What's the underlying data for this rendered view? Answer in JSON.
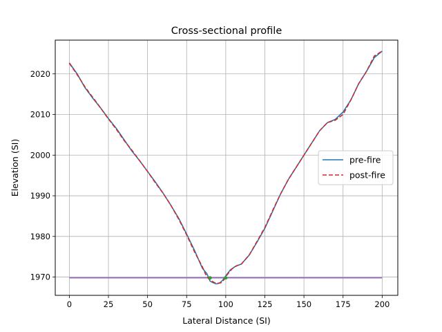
{
  "chart_data": {
    "type": "line",
    "title": "Cross-sectional profile",
    "xlabel": "Lateral Distance (SI)",
    "ylabel": "Elevation (SI)",
    "xlim": [
      -9,
      210
    ],
    "ylim": [
      1965.5,
      2028.3
    ],
    "xticks": [
      0,
      25,
      50,
      75,
      100,
      125,
      150,
      175,
      200
    ],
    "yticks": [
      1970,
      1980,
      1990,
      2000,
      2010,
      2020
    ],
    "grid": true,
    "legend_position": "right",
    "series": [
      {
        "name": "pre-fire",
        "color": "#1f77b4",
        "style": "solid",
        "x": [
          0,
          5,
          10,
          15,
          20,
          25,
          30,
          35,
          40,
          45,
          50,
          55,
          60,
          65,
          70,
          75,
          80,
          85,
          88,
          90,
          92,
          94,
          96,
          98,
          100,
          103,
          106,
          110,
          115,
          120,
          125,
          130,
          135,
          140,
          145,
          150,
          155,
          160,
          165,
          170,
          175,
          180,
          185,
          190,
          195,
          200
        ],
        "y": [
          2022.7,
          2020.0,
          2016.6,
          2014.0,
          2011.6,
          2009.0,
          2006.6,
          2003.8,
          2001.0,
          1998.6,
          1996.0,
          1993.4,
          1990.6,
          1987.6,
          1984.4,
          1980.6,
          1976.6,
          1972.2,
          1970.8,
          1969.0,
          1968.6,
          1968.3,
          1968.5,
          1969.2,
          1970.3,
          1971.8,
          1972.6,
          1973.2,
          1975.4,
          1978.6,
          1982.0,
          1986.2,
          1990.4,
          1994.0,
          1997.0,
          2000.0,
          2003.0,
          2006.0,
          2008.0,
          2008.8,
          2010.6,
          2013.6,
          2017.6,
          2020.6,
          2024.0,
          2025.6
        ]
      },
      {
        "name": "post-fire",
        "color": "#d62728",
        "style": "dashed",
        "x": [
          0,
          5,
          10,
          15,
          20,
          25,
          30,
          35,
          40,
          45,
          50,
          55,
          60,
          65,
          70,
          75,
          80,
          85,
          87,
          89,
          91,
          93,
          95,
          97,
          99,
          101,
          104,
          107,
          110,
          115,
          120,
          125,
          130,
          135,
          140,
          145,
          150,
          155,
          160,
          165,
          170,
          175,
          180,
          185,
          190,
          195,
          200
        ],
        "y": [
          2022.6,
          2019.8,
          2016.8,
          2014.2,
          2011.6,
          2008.9,
          2006.4,
          2003.6,
          2001.2,
          1998.6,
          1996.0,
          1993.2,
          1990.6,
          1987.6,
          1984.2,
          1980.4,
          1976.2,
          1972.6,
          1970.8,
          1969.6,
          1969.0,
          1968.6,
          1968.5,
          1968.6,
          1969.4,
          1970.6,
          1972.0,
          1972.8,
          1973.2,
          1975.4,
          1978.8,
          1982.2,
          1986.4,
          1990.4,
          1994.0,
          1997.0,
          2000.0,
          2003.0,
          2006.0,
          2008.0,
          2008.6,
          2010.0,
          2013.6,
          2017.6,
          2020.6,
          2024.4,
          2025.6
        ]
      },
      {
        "color": "#9467bd",
        "style": "solid",
        "x": [
          0,
          200
        ],
        "y": [
          1969.8,
          1969.8
        ]
      }
    ],
    "markers": [
      {
        "x": 90,
        "y": 1969.8,
        "color": "#2ca02c"
      },
      {
        "x": 100,
        "y": 1969.8,
        "color": "#2ca02c"
      }
    ]
  }
}
